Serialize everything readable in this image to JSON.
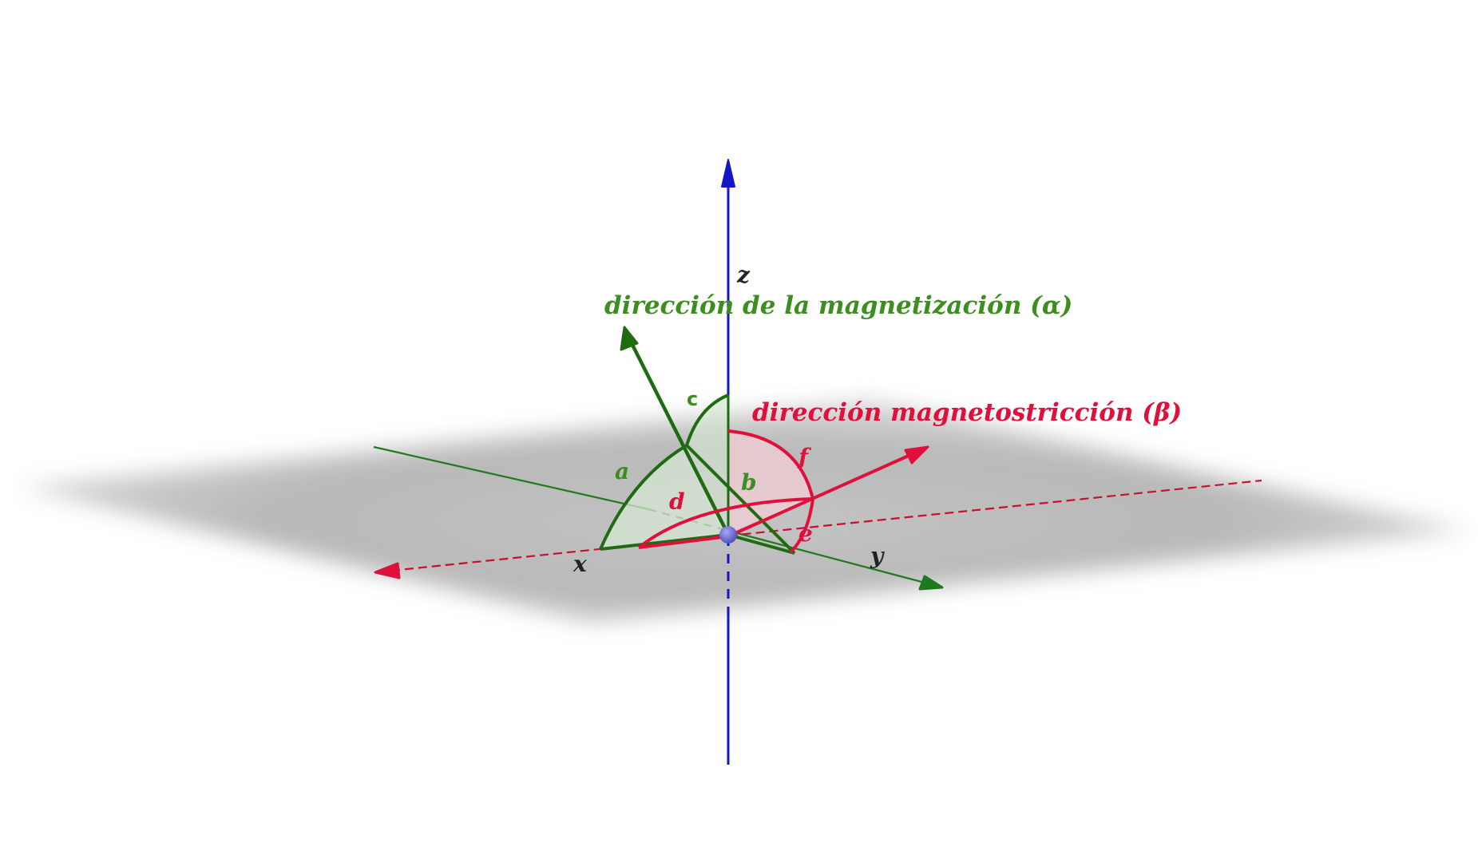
{
  "colors": {
    "background": "#ffffff",
    "plane": "#bdbdbd",
    "z_axis": "#1515c8",
    "x_axis": "#c8102e",
    "y_axis": "#1e7a1e",
    "green": "#1f6b12",
    "green_label": "#3c8f1e",
    "red": "#e0103c",
    "origin": "#6a6ad0"
  },
  "axes": {
    "x_label": "x",
    "y_label": "y",
    "z_label": "z"
  },
  "vectors": {
    "magnetization_label": "dirección de la magnetización (α)",
    "magnetostriction_label": "dirección magnetostricción (β)"
  },
  "angle_labels": {
    "a": "a",
    "b": "b",
    "c": "c",
    "d": "d",
    "e": "e",
    "f": "f"
  }
}
